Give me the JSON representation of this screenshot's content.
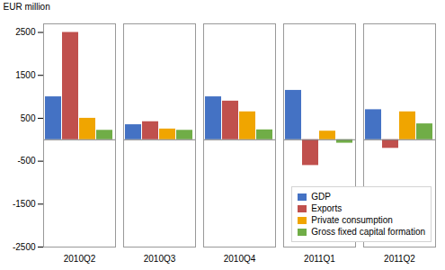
{
  "chart_data": {
    "type": "bar",
    "categories": [
      "2010Q2",
      "2010Q3",
      "2010Q4",
      "2011Q1",
      "2011Q2"
    ],
    "series": [
      {
        "name": "GDP",
        "color": "#4472C4",
        "values": [
          1000,
          350,
          1000,
          1150,
          700
        ]
      },
      {
        "name": "Exports",
        "color": "#C0504D",
        "values": [
          2500,
          420,
          900,
          -600,
          -200
        ]
      },
      {
        "name": "Private consumption",
        "color": "#F0A500",
        "values": [
          500,
          250,
          650,
          200,
          650
        ]
      },
      {
        "name": "Gross fixed capital formation",
        "color": "#70AD47",
        "values": [
          220,
          220,
          230,
          -80,
          370
        ]
      }
    ],
    "ylabel": "EUR million",
    "ylim": [
      -2500,
      2700
    ],
    "yticks": [
      -2500,
      -1500,
      -500,
      500,
      1500,
      2500
    ],
    "legend": "lower right",
    "grid": false
  }
}
